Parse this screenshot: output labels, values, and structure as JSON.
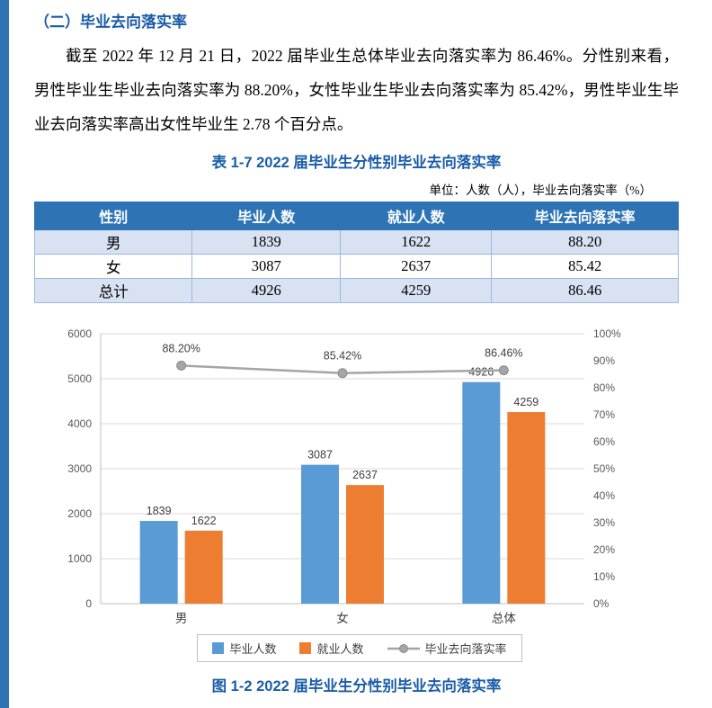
{
  "accent": {
    "heading_blue": "#1A5CA8",
    "table_header_bg": "#2E74B5",
    "row_alt_bg": "#D9E2F3",
    "table_border": "#9CB8DC",
    "side_strip": "#2E74B5",
    "bar_blue": "#5B9BD5",
    "bar_orange": "#ED7D31",
    "line_gray": "#A5A5A5"
  },
  "section": {
    "heading": "（二）毕业去向落实率",
    "paragraph": "截至 2022 年 12 月 21 日，2022 届毕业生总体毕业去向落实率为 86.46%。分性别来看，男性毕业生毕业去向落实率为 88.20%，女性毕业生毕业去向落实率为 85.42%，男性毕业生毕业去向落实率高出女性毕业生 2.78 个百分点。"
  },
  "table": {
    "title": "表 1-7 2022 届毕业生分性别毕业去向落实率",
    "unit_note": "单位：人数（人），毕业去向落实率（%）",
    "headers": [
      "性别",
      "毕业人数",
      "就业人数",
      "毕业去向落实率"
    ],
    "rows": [
      [
        "男",
        "1839",
        "1622",
        "88.20"
      ],
      [
        "女",
        "3087",
        "2637",
        "85.42"
      ],
      [
        "总计",
        "4926",
        "4259",
        "86.46"
      ]
    ]
  },
  "figure": {
    "caption": "图 1-2 2022 届毕业生分性别毕业去向落实率"
  },
  "chart_data": {
    "type": "bar+line",
    "categories": [
      "男",
      "女",
      "总体"
    ],
    "series": [
      {
        "name": "毕业人数",
        "kind": "bar",
        "color": "#5B9BD5",
        "values": [
          1839,
          3087,
          4926
        ]
      },
      {
        "name": "就业人数",
        "kind": "bar",
        "color": "#ED7D31",
        "values": [
          1622,
          2637,
          4259
        ]
      },
      {
        "name": "毕业去向落实率",
        "kind": "line",
        "axis": "right",
        "color": "#A5A5A5",
        "values": [
          88.2,
          85.42,
          86.46
        ],
        "point_labels": [
          "88.20%",
          "85.42%",
          "86.46%"
        ]
      }
    ],
    "left_axis": {
      "min": 0,
      "max": 6000,
      "step": 1000
    },
    "right_axis": {
      "min": 0,
      "max": 100,
      "step": 10,
      "suffix": "%"
    },
    "grid": true,
    "legend_position": "bottom"
  }
}
